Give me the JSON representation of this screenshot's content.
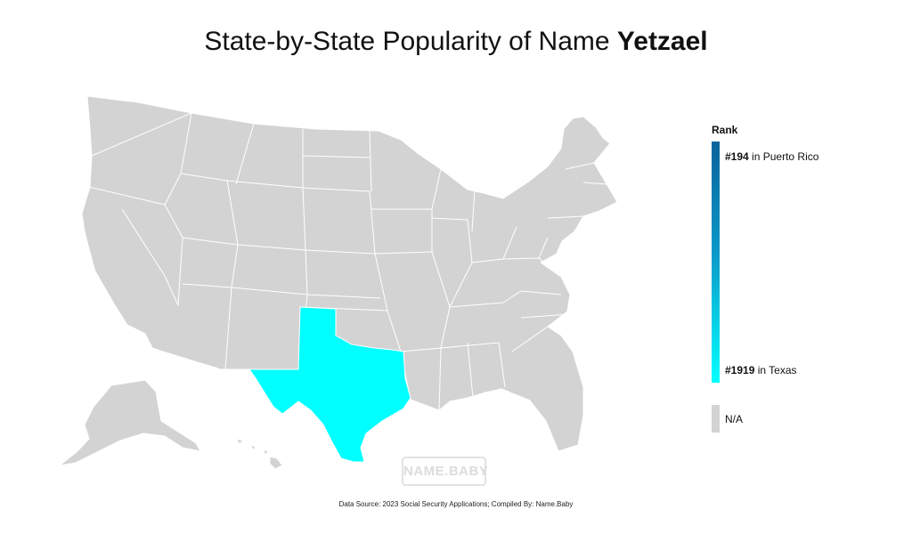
{
  "title": {
    "prefix": "State-by-State Popularity of Name",
    "name": "Yetzael"
  },
  "legend": {
    "heading": "Rank",
    "top": {
      "rank": "#194",
      "place": "in Puerto Rico"
    },
    "bottom": {
      "rank": "#1919",
      "place": "in Texas"
    },
    "na_label": "N/A",
    "colors": {
      "high": "#08639b",
      "low": "#00ffff",
      "na": "#d3d3d3"
    }
  },
  "highlighted_states": [
    {
      "state": "Texas",
      "rank": 1919,
      "color": "#00ffff"
    }
  ],
  "watermark": "NAME.BABY",
  "source": "Data Source: 2023 Social Security Applications; Compiled By: Name.Baby"
}
